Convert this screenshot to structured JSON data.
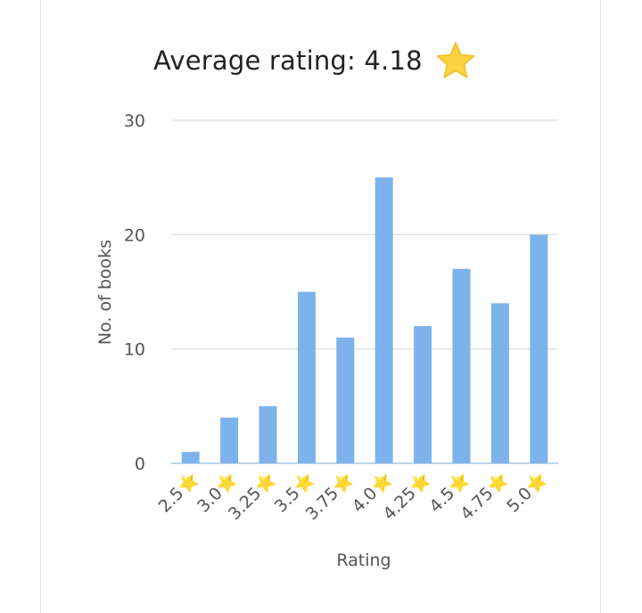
{
  "title": {
    "text": "Average rating: 4.18",
    "icon": "star-icon"
  },
  "chart_data": {
    "type": "bar",
    "categories": [
      "2.5⭐",
      "3.0⭐",
      "3.25⭐",
      "3.5⭐",
      "3.75⭐",
      "4.0⭐",
      "4.25⭐",
      "4.5⭐",
      "4.75⭐",
      "5.0⭐"
    ],
    "values": [
      1,
      4,
      5,
      15,
      11,
      25,
      12,
      17,
      14,
      20
    ],
    "xlabel": "Rating",
    "ylabel": "No. of books",
    "ylim": [
      0,
      30
    ],
    "yticks": [
      0,
      10,
      20,
      30
    ],
    "grid": true,
    "legend": "none"
  },
  "colors": {
    "bar": "#7db3ea",
    "grid": "#dddddd",
    "axis": "#bcd5ee",
    "star": "#f9d342"
  }
}
